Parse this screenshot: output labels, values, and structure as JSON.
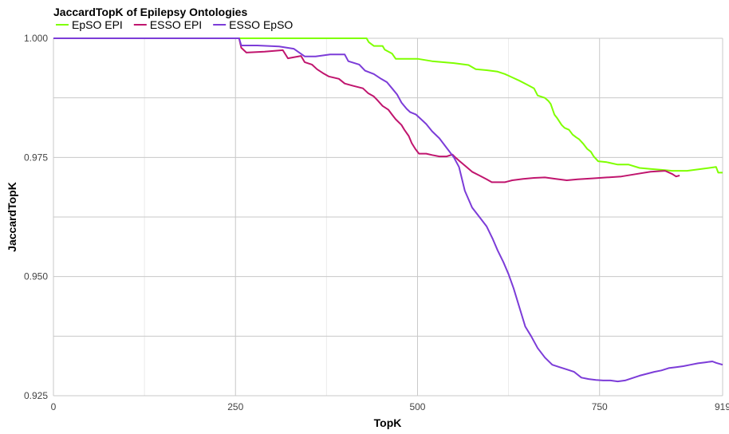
{
  "chart_data": {
    "type": "line",
    "title": "JaccardTopK of Epilepsy Ontologies",
    "xlabel": "TopK",
    "ylabel": "JaccardTopK",
    "xlim": [
      0,
      919
    ],
    "ylim": [
      0.925,
      1.0
    ],
    "x_ticks": [
      0,
      250,
      500,
      750,
      919
    ],
    "x_tick_labels": [
      "0",
      "250",
      "500",
      "750",
      "919"
    ],
    "y_ticks": [
      0.925,
      0.95,
      0.975,
      1.0
    ],
    "y_tick_labels": [
      "0.925",
      "0.950",
      "0.975",
      "1.000"
    ],
    "grid": true,
    "legend_position": "top-left",
    "series": [
      {
        "name": "EpSO EPI",
        "color": "#7FFF00",
        "points": [
          [
            0,
            1.0
          ],
          [
            430,
            1.0
          ],
          [
            433,
            0.9992
          ],
          [
            440,
            0.9984
          ],
          [
            452,
            0.9984
          ],
          [
            455,
            0.9976
          ],
          [
            465,
            0.9968
          ],
          [
            470,
            0.9957
          ],
          [
            500,
            0.9957
          ],
          [
            520,
            0.9952
          ],
          [
            550,
            0.9948
          ],
          [
            570,
            0.9944
          ],
          [
            580,
            0.9935
          ],
          [
            595,
            0.9933
          ],
          [
            610,
            0.993
          ],
          [
            620,
            0.9925
          ],
          [
            630,
            0.9918
          ],
          [
            640,
            0.9911
          ],
          [
            650,
            0.9903
          ],
          [
            660,
            0.9895
          ],
          [
            665,
            0.988
          ],
          [
            675,
            0.9875
          ],
          [
            680,
            0.9868
          ],
          [
            683,
            0.9862
          ],
          [
            688,
            0.984
          ],
          [
            692,
            0.9832
          ],
          [
            698,
            0.9818
          ],
          [
            702,
            0.9812
          ],
          [
            708,
            0.9808
          ],
          [
            713,
            0.9798
          ],
          [
            718,
            0.9792
          ],
          [
            722,
            0.9788
          ],
          [
            728,
            0.9778
          ],
          [
            733,
            0.9768
          ],
          [
            738,
            0.9762
          ],
          [
            742,
            0.9752
          ],
          [
            748,
            0.9742
          ],
          [
            760,
            0.974
          ],
          [
            775,
            0.9735
          ],
          [
            790,
            0.9735
          ],
          [
            805,
            0.9728
          ],
          [
            820,
            0.9726
          ],
          [
            835,
            0.9724
          ],
          [
            850,
            0.9722
          ],
          [
            870,
            0.9722
          ],
          [
            890,
            0.9726
          ],
          [
            910,
            0.973
          ],
          [
            913,
            0.9718
          ],
          [
            919,
            0.9718
          ]
        ]
      },
      {
        "name": "ESSO EPI",
        "color": "#C0156E",
        "points": [
          [
            0,
            1.0
          ],
          [
            255,
            1.0
          ],
          [
            258,
            0.998
          ],
          [
            265,
            0.997
          ],
          [
            290,
            0.9972
          ],
          [
            315,
            0.9975
          ],
          [
            322,
            0.9958
          ],
          [
            340,
            0.9963
          ],
          [
            345,
            0.995
          ],
          [
            355,
            0.9945
          ],
          [
            362,
            0.9935
          ],
          [
            370,
            0.9927
          ],
          [
            378,
            0.992
          ],
          [
            392,
            0.9915
          ],
          [
            400,
            0.9905
          ],
          [
            412,
            0.99
          ],
          [
            425,
            0.9895
          ],
          [
            432,
            0.9885
          ],
          [
            440,
            0.9878
          ],
          [
            445,
            0.987
          ],
          [
            452,
            0.9858
          ],
          [
            460,
            0.985
          ],
          [
            465,
            0.984
          ],
          [
            470,
            0.983
          ],
          [
            478,
            0.9818
          ],
          [
            482,
            0.9808
          ],
          [
            488,
            0.9795
          ],
          [
            492,
            0.978
          ],
          [
            497,
            0.9768
          ],
          [
            502,
            0.9758
          ],
          [
            512,
            0.9758
          ],
          [
            520,
            0.9755
          ],
          [
            530,
            0.9752
          ],
          [
            540,
            0.9752
          ],
          [
            548,
            0.9756
          ],
          [
            552,
            0.975
          ],
          [
            558,
            0.9742
          ],
          [
            565,
            0.9733
          ],
          [
            575,
            0.972
          ],
          [
            585,
            0.9712
          ],
          [
            595,
            0.9704
          ],
          [
            602,
            0.9698
          ],
          [
            620,
            0.9698
          ],
          [
            630,
            0.9702
          ],
          [
            645,
            0.9705
          ],
          [
            660,
            0.9707
          ],
          [
            675,
            0.9708
          ],
          [
            690,
            0.9705
          ],
          [
            705,
            0.9702
          ],
          [
            720,
            0.9704
          ],
          [
            740,
            0.9706
          ],
          [
            760,
            0.9708
          ],
          [
            780,
            0.971
          ],
          [
            800,
            0.9715
          ],
          [
            820,
            0.972
          ],
          [
            840,
            0.9722
          ],
          [
            850,
            0.9715
          ],
          [
            855,
            0.971
          ],
          [
            860,
            0.9712
          ]
        ]
      },
      {
        "name": "ESSO EpSO",
        "color": "#7C3CD8",
        "points": [
          [
            0,
            1.0
          ],
          [
            255,
            1.0
          ],
          [
            258,
            0.9985
          ],
          [
            280,
            0.9985
          ],
          [
            310,
            0.9983
          ],
          [
            330,
            0.9978
          ],
          [
            345,
            0.9962
          ],
          [
            360,
            0.9962
          ],
          [
            380,
            0.9966
          ],
          [
            400,
            0.9966
          ],
          [
            405,
            0.9952
          ],
          [
            420,
            0.9945
          ],
          [
            428,
            0.9932
          ],
          [
            440,
            0.9925
          ],
          [
            450,
            0.9915
          ],
          [
            458,
            0.9908
          ],
          [
            465,
            0.9895
          ],
          [
            472,
            0.9882
          ],
          [
            478,
            0.9865
          ],
          [
            485,
            0.9852
          ],
          [
            490,
            0.9845
          ],
          [
            498,
            0.984
          ],
          [
            505,
            0.983
          ],
          [
            512,
            0.982
          ],
          [
            520,
            0.9805
          ],
          [
            530,
            0.979
          ],
          [
            540,
            0.977
          ],
          [
            550,
            0.975
          ],
          [
            557,
            0.973
          ],
          [
            565,
            0.968
          ],
          [
            575,
            0.9645
          ],
          [
            585,
            0.9625
          ],
          [
            595,
            0.9605
          ],
          [
            603,
            0.958
          ],
          [
            610,
            0.9555
          ],
          [
            618,
            0.953
          ],
          [
            625,
            0.9505
          ],
          [
            632,
            0.9475
          ],
          [
            640,
            0.9435
          ],
          [
            648,
            0.9395
          ],
          [
            656,
            0.9375
          ],
          [
            665,
            0.935
          ],
          [
            675,
            0.933
          ],
          [
            685,
            0.9315
          ],
          [
            695,
            0.931
          ],
          [
            705,
            0.9305
          ],
          [
            715,
            0.93
          ],
          [
            725,
            0.9288
          ],
          [
            735,
            0.9285
          ],
          [
            745,
            0.9283
          ],
          [
            755,
            0.9282
          ],
          [
            765,
            0.9282
          ],
          [
            775,
            0.928
          ],
          [
            785,
            0.9282
          ],
          [
            795,
            0.9287
          ],
          [
            805,
            0.9292
          ],
          [
            815,
            0.9296
          ],
          [
            825,
            0.93
          ],
          [
            835,
            0.9303
          ],
          [
            845,
            0.9308
          ],
          [
            855,
            0.931
          ],
          [
            865,
            0.9312
          ],
          [
            875,
            0.9315
          ],
          [
            885,
            0.9318
          ],
          [
            895,
            0.932
          ],
          [
            905,
            0.9322
          ],
          [
            910,
            0.9319
          ],
          [
            919,
            0.9315
          ]
        ]
      }
    ]
  }
}
